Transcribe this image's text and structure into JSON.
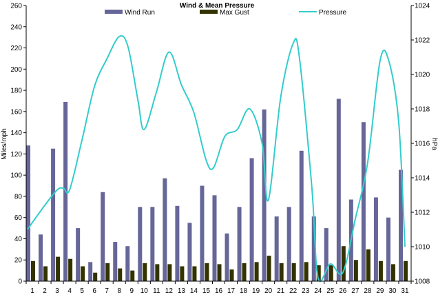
{
  "chart_data": {
    "type": "bar",
    "title": "Wind & Mean Pressure",
    "ylabel": "Miles/mph",
    "y2label": "hPa",
    "ylim": [
      0,
      260
    ],
    "y2lim": [
      1008,
      1024
    ],
    "yticks": [
      0,
      20,
      40,
      60,
      80,
      100,
      120,
      140,
      160,
      180,
      200,
      220,
      240,
      260
    ],
    "y2ticks": [
      1008,
      1010,
      1012,
      1014,
      1016,
      1018,
      1020,
      1022,
      1024
    ],
    "categories": [
      "1",
      "2",
      "3",
      "4",
      "5",
      "6",
      "7",
      "8",
      "9",
      "10",
      "11",
      "12",
      "13",
      "14",
      "15",
      "16",
      "17",
      "18",
      "19",
      "20",
      "21",
      "22",
      "23",
      "24",
      "25",
      "26",
      "27",
      "28",
      "29",
      "30",
      "31"
    ],
    "legend_position": "top",
    "grid": false,
    "series": [
      {
        "name": "Wind Run",
        "kind": "bar",
        "axis": "left",
        "color": "#666699",
        "values": [
          128,
          44,
          125,
          169,
          50,
          18,
          84,
          37,
          33,
          70,
          70,
          97,
          71,
          55,
          90,
          81,
          45,
          70,
          116,
          162,
          61,
          70,
          123,
          61,
          50,
          172,
          77,
          150,
          79,
          60,
          105
        ]
      },
      {
        "name": "Max Gust",
        "kind": "bar",
        "axis": "left",
        "color": "#333300",
        "values": [
          19,
          14,
          23,
          21,
          14,
          8,
          17,
          12,
          10,
          17,
          16,
          16,
          14,
          14,
          17,
          16,
          11,
          17,
          18,
          24,
          17,
          17,
          18,
          15,
          15,
          33,
          20,
          30,
          19,
          16,
          19
        ]
      },
      {
        "name": "Pressure",
        "kind": "line",
        "axis": "right",
        "color": "#33CCCC",
        "x": [
          0.6,
          2.0,
          3.0,
          3.5,
          4.0,
          5.0,
          6.0,
          7.0,
          8.0,
          8.7,
          9.5,
          10.0,
          11.0,
          12.0,
          13.0,
          14.0,
          15.0,
          15.6,
          16.5,
          17.5,
          18.5,
          19.5,
          20.0,
          21.0,
          22.0,
          22.5,
          23.5,
          24.0,
          25.0,
          26.0,
          27.0,
          28.0,
          29.0,
          29.7,
          30.5,
          31.0
        ],
        "values": [
          1011.0,
          1012.4,
          1013.3,
          1013.4,
          1013.3,
          1016.2,
          1019.3,
          1020.9,
          1022.2,
          1021.6,
          1018.5,
          1016.8,
          1019.0,
          1021.3,
          1019.4,
          1017.8,
          1015.0,
          1014.6,
          1016.4,
          1016.8,
          1018.0,
          1016.0,
          1012.7,
          1018.7,
          1021.8,
          1021.0,
          1013.5,
          1008.2,
          1009.0,
          1008.5,
          1011.6,
          1014.9,
          1020.8,
          1020.8,
          1017.2,
          1010.0
        ]
      }
    ]
  }
}
